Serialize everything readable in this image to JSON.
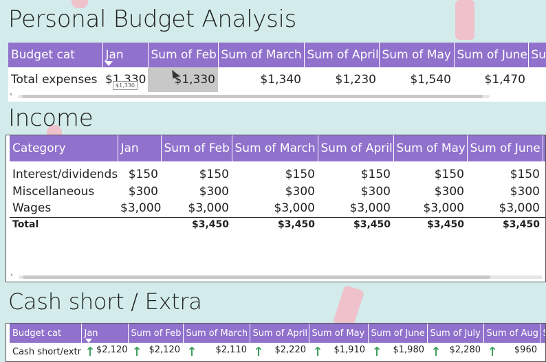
{
  "budget": {
    "title": "Personal Budget Analysis",
    "headers": [
      "Budget cat",
      "Jan",
      "Sum of Feb",
      "Sum of March",
      "Sum of April",
      "Sum of May",
      "Sum of June",
      "Su"
    ],
    "row": {
      "label": "Total expenses",
      "values": [
        "$1,330",
        "$1,330",
        "$1,340",
        "$1,230",
        "$1,540",
        "$1,470"
      ]
    },
    "tooltip": "$1,330"
  },
  "income": {
    "title": "Income",
    "headers": [
      "Category",
      "Jan",
      "Sum of Feb",
      "Sum of March",
      "Sum of April",
      "Sum of May",
      "Sum of June",
      "S"
    ],
    "rows": [
      {
        "label": "Interest/dividends",
        "values": [
          "$150",
          "$150",
          "$150",
          "$150",
          "$150",
          "$150"
        ]
      },
      {
        "label": "Miscellaneous",
        "values": [
          "$300",
          "$300",
          "$300",
          "$300",
          "$300",
          "$300"
        ]
      },
      {
        "label": "Wages",
        "values": [
          "$3,000",
          "$3,000",
          "$3,000",
          "$3,000",
          "$3,000",
          "$3,000"
        ]
      }
    ],
    "total": {
      "label": "Total",
      "values": [
        "",
        "$3,450",
        "$3,450",
        "$3,450",
        "$3,450",
        "$3,450"
      ]
    }
  },
  "cash": {
    "title": "Cash short / Extra",
    "headers": [
      "Budget cat",
      "Jan",
      "Sum of Feb",
      "Sum of March",
      "Sum of April",
      "Sum of May",
      "Sum of June",
      "Sum of July",
      "Sum of Aug",
      "S"
    ],
    "row": {
      "label": "Cash short/extra",
      "values": [
        "$2,120",
        "$2,120",
        "$2,110",
        "$2,220",
        "$1,910",
        "$1,980",
        "$2,280",
        "$960"
      ]
    }
  },
  "colors": {
    "header": "#9071cc",
    "background": "#d3ebeb",
    "accent_decor": "#efc1cb",
    "up_arrow": "#3fa060"
  },
  "icons": {
    "sort": "caret-down-icon",
    "up": "up-arrow-icon",
    "scroll_left": "chevron-left-icon"
  }
}
